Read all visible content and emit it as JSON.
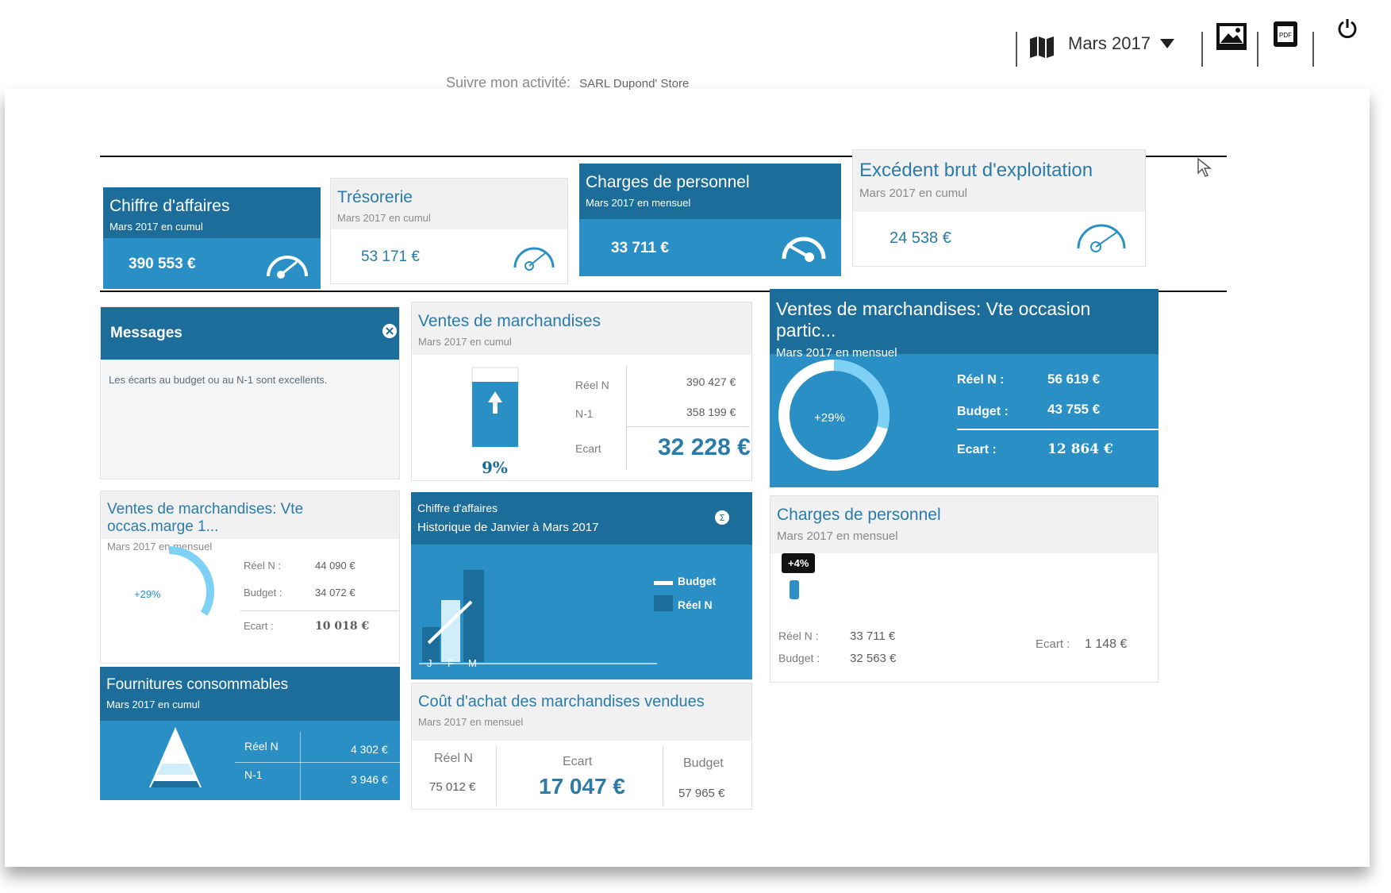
{
  "toolbar": {
    "period": "Mars 2017",
    "icons": [
      "map-icon",
      "image-icon",
      "pdf-icon",
      "power-icon"
    ]
  },
  "subtitle": {
    "prefix": "Suivre mon activité:",
    "company": "SARL Dupond' Store"
  },
  "kpis": [
    {
      "title": "Chiffre d'affaires",
      "sub": "Mars 2017 en cumul",
      "value": "390 553 €"
    },
    {
      "title": "Trésorerie",
      "sub": "Mars 2017 en cumul",
      "value": "53 171 €"
    },
    {
      "title": "Charges de personnel",
      "sub": "Mars 2017 en mensuel",
      "value": "33 711 €"
    },
    {
      "title": "Excédent brut d'exploitation",
      "sub": "Mars 2017 en cumul",
      "value": "24 538 €"
    }
  ],
  "messages": {
    "title": "Messages",
    "text": "Les écarts au budget ou au N-1 sont excellents."
  },
  "ventes": {
    "title": "Ventes de marchandises",
    "sub": "Mars 2017 en cumul",
    "pct": "9%",
    "reel_label": "Réel N",
    "reel": "390 427 €",
    "n1_label": "N-1",
    "n1": "358 199 €",
    "ecart_label": "Ecart",
    "ecart": "32 228 €"
  },
  "vte_occasion": {
    "title": "Ventes de marchandises: Vte occasion partic...",
    "sub": "Mars 2017 en mensuel",
    "pct": "+29%",
    "ring_fraction": 0.29,
    "reel_label": "Réel N :",
    "reel": "56 619 €",
    "budget_label": "Budget :",
    "budget": "43 755 €",
    "ecart_label": "Ecart :",
    "ecart": "12 864 €"
  },
  "vte_marge": {
    "title": "Ventes de marchandises: Vte occas.marge 1...",
    "sub": "Mars 2017 en mensuel",
    "pct": "+29%",
    "reel_label": "Réel N :",
    "reel": "44 090 €",
    "budget_label": "Budget :",
    "budget": "34 072 €",
    "ecart_label": "Ecart :",
    "ecart": "10 018 €"
  },
  "historique": {
    "title": "Chiffre d'affaires",
    "sub": "Historique de Janvier à Mars 2017",
    "legend_budget": "Budget",
    "legend_reel": "Réel N",
    "months": [
      "J",
      "F",
      "M"
    ]
  },
  "charges": {
    "title": "Charges de personnel",
    "sub": "Mars 2017 en mensuel",
    "badge": "+4%",
    "reel_label": "Réel N :",
    "reel": "33 711 €",
    "budget_label": "Budget :",
    "budget": "32 563 €",
    "ecart_label": "Ecart :",
    "ecart": "1 148 €"
  },
  "fournitures": {
    "title": "Fournitures consommables",
    "sub": "Mars 2017 en cumul",
    "reel_label": "Réel N",
    "reel": "4 302 €",
    "n1_label": "N-1",
    "n1": "3 946 €"
  },
  "cout_achat": {
    "title": "Coût d'achat des marchandises vendues",
    "sub": "Mars 2017 en mensuel",
    "reel_label": "Réel N",
    "reel": "75 012 €",
    "ecart_label": "Ecart",
    "ecart": "17 047 €",
    "budget_label": "Budget",
    "budget": "57 965 €"
  },
  "colors": {
    "dark": "#1d6d9a",
    "mid": "#2a8fc4",
    "light": "#7fd0f5",
    "text": "#2a7ba8"
  }
}
